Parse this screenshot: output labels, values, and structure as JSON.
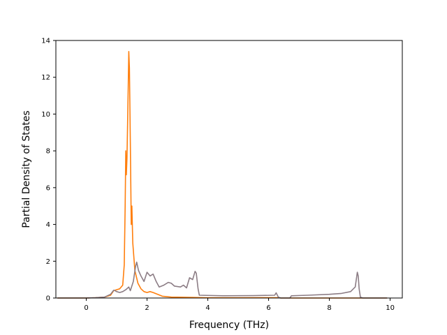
{
  "chart_data": {
    "type": "line",
    "title": "",
    "xlabel": "Frequency (THz)",
    "ylabel": "Partial Density of States",
    "xlim": [
      -1.0,
      10.4
    ],
    "ylim": [
      0,
      14
    ],
    "xticks": [
      0,
      2,
      4,
      6,
      8,
      10
    ],
    "yticks": [
      0,
      2,
      4,
      6,
      8,
      10,
      12,
      14
    ],
    "grid": false,
    "legend": "none",
    "series": [
      {
        "color": "#ff7f0e",
        "points": [
          [
            -0.95,
            0
          ],
          [
            0,
            0
          ],
          [
            0.3,
            0.02
          ],
          [
            0.6,
            0.05
          ],
          [
            0.8,
            0.15
          ],
          [
            0.9,
            0.4
          ],
          [
            1.0,
            0.45
          ],
          [
            1.1,
            0.5
          ],
          [
            1.2,
            0.7
          ],
          [
            1.25,
            1.8
          ],
          [
            1.28,
            5.0
          ],
          [
            1.3,
            8.0
          ],
          [
            1.32,
            6.7
          ],
          [
            1.34,
            7.6
          ],
          [
            1.36,
            9.5
          ],
          [
            1.38,
            11.5
          ],
          [
            1.4,
            13.4
          ],
          [
            1.42,
            12.5
          ],
          [
            1.45,
            8.5
          ],
          [
            1.48,
            4.0
          ],
          [
            1.5,
            5.0
          ],
          [
            1.53,
            3.0
          ],
          [
            1.6,
            1.5
          ],
          [
            1.7,
            0.8
          ],
          [
            1.8,
            0.5
          ],
          [
            1.9,
            0.35
          ],
          [
            2.0,
            0.3
          ],
          [
            2.1,
            0.35
          ],
          [
            2.2,
            0.3
          ],
          [
            2.35,
            0.2
          ],
          [
            2.5,
            0.1
          ],
          [
            2.8,
            0.05
          ],
          [
            3.5,
            0.03
          ],
          [
            4.0,
            0.01
          ],
          [
            5.0,
            0.01
          ],
          [
            6.3,
            0.02
          ],
          [
            6.4,
            0
          ],
          [
            9.0,
            0
          ],
          [
            9.9,
            0
          ]
        ]
      },
      {
        "color": "#8c7d85",
        "points": [
          [
            -0.95,
            0
          ],
          [
            0,
            0
          ],
          [
            0.3,
            0.02
          ],
          [
            0.6,
            0.05
          ],
          [
            0.8,
            0.2
          ],
          [
            0.9,
            0.42
          ],
          [
            0.95,
            0.4
          ],
          [
            1.0,
            0.35
          ],
          [
            1.1,
            0.3
          ],
          [
            1.2,
            0.35
          ],
          [
            1.3,
            0.45
          ],
          [
            1.4,
            0.6
          ],
          [
            1.45,
            0.4
          ],
          [
            1.55,
            0.9
          ],
          [
            1.62,
            1.7
          ],
          [
            1.66,
            1.95
          ],
          [
            1.72,
            1.5
          ],
          [
            1.8,
            1.2
          ],
          [
            1.9,
            0.9
          ],
          [
            2.0,
            1.4
          ],
          [
            2.1,
            1.2
          ],
          [
            2.2,
            1.3
          ],
          [
            2.3,
            0.9
          ],
          [
            2.4,
            0.6
          ],
          [
            2.55,
            0.7
          ],
          [
            2.7,
            0.85
          ],
          [
            2.8,
            0.8
          ],
          [
            2.9,
            0.65
          ],
          [
            3.1,
            0.6
          ],
          [
            3.2,
            0.7
          ],
          [
            3.3,
            0.55
          ],
          [
            3.4,
            1.1
          ],
          [
            3.5,
            1.0
          ],
          [
            3.58,
            1.45
          ],
          [
            3.62,
            1.35
          ],
          [
            3.68,
            0.5
          ],
          [
            3.72,
            0.15
          ],
          [
            4.5,
            0.12
          ],
          [
            5.5,
            0.13
          ],
          [
            6.2,
            0.15
          ],
          [
            6.25,
            0.28
          ],
          [
            6.32,
            0.05
          ],
          [
            6.4,
            0
          ],
          [
            6.7,
            0
          ],
          [
            6.75,
            0.12
          ],
          [
            7.3,
            0.15
          ],
          [
            8.0,
            0.2
          ],
          [
            8.4,
            0.25
          ],
          [
            8.7,
            0.35
          ],
          [
            8.85,
            0.6
          ],
          [
            8.92,
            1.4
          ],
          [
            8.95,
            1.2
          ],
          [
            8.98,
            0.5
          ],
          [
            9.02,
            0.05
          ],
          [
            9.1,
            0
          ],
          [
            9.9,
            0
          ]
        ]
      }
    ]
  }
}
